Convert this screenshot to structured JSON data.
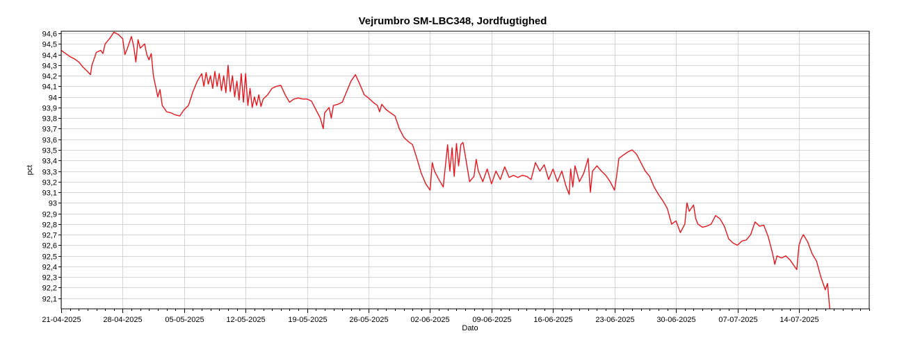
{
  "chart_data": {
    "type": "line",
    "title": "Vejrumbro SM-LBC348, Jordfugtighed",
    "xlabel": "Dato",
    "ylabel": "pct",
    "ylim": [
      92.0,
      94.62
    ],
    "xlim": [
      "2025-04-21",
      "2025-07-22"
    ],
    "grid": true,
    "y_ticks": [
      {
        "value": 92.1,
        "label": "92,1"
      },
      {
        "value": 92.2,
        "label": "92,2"
      },
      {
        "value": 92.3,
        "label": "92,3"
      },
      {
        "value": 92.4,
        "label": "92,4"
      },
      {
        "value": 92.5,
        "label": "92,5"
      },
      {
        "value": 92.6,
        "label": "92,6"
      },
      {
        "value": 92.7,
        "label": "92,7"
      },
      {
        "value": 92.8,
        "label": "92,8"
      },
      {
        "value": 92.9,
        "label": "92,9"
      },
      {
        "value": 93.0,
        "label": "93"
      },
      {
        "value": 93.1,
        "label": "93,1"
      },
      {
        "value": 93.2,
        "label": "93,2"
      },
      {
        "value": 93.3,
        "label": "93,3"
      },
      {
        "value": 93.4,
        "label": "93,4"
      },
      {
        "value": 93.5,
        "label": "93,5"
      },
      {
        "value": 93.6,
        "label": "93,6"
      },
      {
        "value": 93.7,
        "label": "93,7"
      },
      {
        "value": 93.8,
        "label": "93,8"
      },
      {
        "value": 93.9,
        "label": "93,9"
      },
      {
        "value": 94.0,
        "label": "94"
      },
      {
        "value": 94.1,
        "label": "94,1"
      },
      {
        "value": 94.2,
        "label": "94,2"
      },
      {
        "value": 94.3,
        "label": "94,3"
      },
      {
        "value": 94.4,
        "label": "94,4"
      },
      {
        "value": 94.5,
        "label": "94,5"
      },
      {
        "value": 94.6,
        "label": "94,6"
      }
    ],
    "x_ticks": [
      {
        "date": "2025-04-21",
        "label": "21-04-2025"
      },
      {
        "date": "2025-04-28",
        "label": "28-04-2025"
      },
      {
        "date": "2025-05-05",
        "label": "05-05-2025"
      },
      {
        "date": "2025-05-12",
        "label": "12-05-2025"
      },
      {
        "date": "2025-05-19",
        "label": "19-05-2025"
      },
      {
        "date": "2025-05-26",
        "label": "26-05-2025"
      },
      {
        "date": "2025-06-02",
        "label": "02-06-2025"
      },
      {
        "date": "2025-06-09",
        "label": "09-06-2025"
      },
      {
        "date": "2025-06-16",
        "label": "16-06-2025"
      },
      {
        "date": "2025-06-23",
        "label": "23-06-2025"
      },
      {
        "date": "2025-06-30",
        "label": "30-06-2025"
      },
      {
        "date": "2025-07-07",
        "label": "07-07-2025"
      },
      {
        "date": "2025-07-14",
        "label": "14-07-2025"
      }
    ],
    "series": [
      {
        "color": "#e8141c",
        "points": [
          [
            "2025-04-21 00:00",
            94.44
          ],
          [
            "2025-04-21 12:00",
            94.41
          ],
          [
            "2025-04-22 00:00",
            94.38
          ],
          [
            "2025-04-22 12:00",
            94.36
          ],
          [
            "2025-04-23 00:00",
            94.33
          ],
          [
            "2025-04-23 12:00",
            94.28
          ],
          [
            "2025-04-24 00:00",
            94.24
          ],
          [
            "2025-04-24 08:00",
            94.21
          ],
          [
            "2025-04-24 12:00",
            94.3
          ],
          [
            "2025-04-24 18:00",
            94.36
          ],
          [
            "2025-04-25 00:00",
            94.42
          ],
          [
            "2025-04-25 12:00",
            94.44
          ],
          [
            "2025-04-25 18:00",
            94.41
          ],
          [
            "2025-04-26 00:00",
            94.5
          ],
          [
            "2025-04-26 12:00",
            94.55
          ],
          [
            "2025-04-27 00:00",
            94.61
          ],
          [
            "2025-04-27 12:00",
            94.59
          ],
          [
            "2025-04-28 00:00",
            94.55
          ],
          [
            "2025-04-28 06:00",
            94.4
          ],
          [
            "2025-04-28 12:00",
            94.45
          ],
          [
            "2025-04-29 00:00",
            94.57
          ],
          [
            "2025-04-29 06:00",
            94.48
          ],
          [
            "2025-04-29 12:00",
            94.33
          ],
          [
            "2025-04-29 18:00",
            94.54
          ],
          [
            "2025-04-30 00:00",
            94.46
          ],
          [
            "2025-04-30 12:00",
            94.5
          ],
          [
            "2025-04-30 18:00",
            94.4
          ],
          [
            "2025-05-01 00:00",
            94.35
          ],
          [
            "2025-05-01 06:00",
            94.41
          ],
          [
            "2025-05-01 12:00",
            94.2
          ],
          [
            "2025-05-01 18:00",
            94.1
          ],
          [
            "2025-05-02 00:00",
            94.0
          ],
          [
            "2025-05-02 06:00",
            94.07
          ],
          [
            "2025-05-02 12:00",
            93.92
          ],
          [
            "2025-05-03 00:00",
            93.86
          ],
          [
            "2025-05-03 12:00",
            93.85
          ],
          [
            "2025-05-04 00:00",
            93.83
          ],
          [
            "2025-05-04 12:00",
            93.82
          ],
          [
            "2025-05-05 00:00",
            93.88
          ],
          [
            "2025-05-05 12:00",
            93.92
          ],
          [
            "2025-05-06 00:00",
            94.05
          ],
          [
            "2025-05-06 12:00",
            94.15
          ],
          [
            "2025-05-07 00:00",
            94.22
          ],
          [
            "2025-05-07 06:00",
            94.1
          ],
          [
            "2025-05-07 12:00",
            94.23
          ],
          [
            "2025-05-07 18:00",
            94.12
          ],
          [
            "2025-05-08 00:00",
            94.2
          ],
          [
            "2025-05-08 06:00",
            94.08
          ],
          [
            "2025-05-08 12:00",
            94.24
          ],
          [
            "2025-05-08 18:00",
            94.1
          ],
          [
            "2025-05-09 00:00",
            94.22
          ],
          [
            "2025-05-09 06:00",
            94.06
          ],
          [
            "2025-05-09 12:00",
            94.2
          ],
          [
            "2025-05-09 18:00",
            94.04
          ],
          [
            "2025-05-10 00:00",
            94.3
          ],
          [
            "2025-05-10 06:00",
            94.05
          ],
          [
            "2025-05-10 12:00",
            94.2
          ],
          [
            "2025-05-10 18:00",
            94.0
          ],
          [
            "2025-05-11 00:00",
            94.15
          ],
          [
            "2025-05-11 06:00",
            93.97
          ],
          [
            "2025-05-11 12:00",
            94.22
          ],
          [
            "2025-05-11 18:00",
            93.95
          ],
          [
            "2025-05-12 00:00",
            94.22
          ],
          [
            "2025-05-12 06:00",
            93.92
          ],
          [
            "2025-05-12 12:00",
            94.08
          ],
          [
            "2025-05-12 18:00",
            93.9
          ],
          [
            "2025-05-13 00:00",
            94.0
          ],
          [
            "2025-05-13 06:00",
            93.92
          ],
          [
            "2025-05-13 12:00",
            94.02
          ],
          [
            "2025-05-13 18:00",
            93.91
          ],
          [
            "2025-05-14 00:00",
            93.98
          ],
          [
            "2025-05-14 12:00",
            94.02
          ],
          [
            "2025-05-15 00:00",
            94.08
          ],
          [
            "2025-05-15 12:00",
            94.1
          ],
          [
            "2025-05-16 00:00",
            94.11
          ],
          [
            "2025-05-16 12:00",
            94.02
          ],
          [
            "2025-05-17 00:00",
            93.95
          ],
          [
            "2025-05-17 12:00",
            93.98
          ],
          [
            "2025-05-18 00:00",
            93.99
          ],
          [
            "2025-05-18 12:00",
            93.98
          ],
          [
            "2025-05-19 00:00",
            93.98
          ],
          [
            "2025-05-19 12:00",
            93.96
          ],
          [
            "2025-05-20 00:00",
            93.88
          ],
          [
            "2025-05-20 12:00",
            93.8
          ],
          [
            "2025-05-20 20:00",
            93.7
          ],
          [
            "2025-05-21 00:00",
            93.85
          ],
          [
            "2025-05-21 12:00",
            93.9
          ],
          [
            "2025-05-21 18:00",
            93.8
          ],
          [
            "2025-05-22 00:00",
            93.92
          ],
          [
            "2025-05-22 12:00",
            93.93
          ],
          [
            "2025-05-23 00:00",
            93.95
          ],
          [
            "2025-05-23 12:00",
            94.05
          ],
          [
            "2025-05-24 00:00",
            94.15
          ],
          [
            "2025-05-24 12:00",
            94.21
          ],
          [
            "2025-05-25 00:00",
            94.12
          ],
          [
            "2025-05-25 12:00",
            94.02
          ],
          [
            "2025-05-26 00:00",
            93.99
          ],
          [
            "2025-05-26 12:00",
            93.95
          ],
          [
            "2025-05-27 00:00",
            93.92
          ],
          [
            "2025-05-27 06:00",
            93.86
          ],
          [
            "2025-05-27 12:00",
            93.93
          ],
          [
            "2025-05-28 00:00",
            93.88
          ],
          [
            "2025-05-28 12:00",
            93.85
          ],
          [
            "2025-05-29 00:00",
            93.82
          ],
          [
            "2025-05-29 12:00",
            93.7
          ],
          [
            "2025-05-30 00:00",
            93.62
          ],
          [
            "2025-05-30 12:00",
            93.58
          ],
          [
            "2025-05-31 00:00",
            93.55
          ],
          [
            "2025-05-31 12:00",
            93.42
          ],
          [
            "2025-06-01 00:00",
            93.28
          ],
          [
            "2025-06-01 12:00",
            93.18
          ],
          [
            "2025-06-02 00:00",
            93.12
          ],
          [
            "2025-06-02 06:00",
            93.38
          ],
          [
            "2025-06-02 12:00",
            93.3
          ],
          [
            "2025-06-03 00:00",
            93.22
          ],
          [
            "2025-06-03 12:00",
            93.15
          ],
          [
            "2025-06-04 00:00",
            93.55
          ],
          [
            "2025-06-04 06:00",
            93.3
          ],
          [
            "2025-06-04 12:00",
            93.52
          ],
          [
            "2025-06-04 18:00",
            93.25
          ],
          [
            "2025-06-05 00:00",
            93.56
          ],
          [
            "2025-06-05 06:00",
            93.35
          ],
          [
            "2025-06-05 12:00",
            93.55
          ],
          [
            "2025-06-05 18:00",
            93.57
          ],
          [
            "2025-06-06 00:00",
            93.45
          ],
          [
            "2025-06-06 12:00",
            93.2
          ],
          [
            "2025-06-07 00:00",
            93.25
          ],
          [
            "2025-06-07 06:00",
            93.41
          ],
          [
            "2025-06-07 12:00",
            93.3
          ],
          [
            "2025-06-08 00:00",
            93.2
          ],
          [
            "2025-06-08 12:00",
            93.32
          ],
          [
            "2025-06-09 00:00",
            93.18
          ],
          [
            "2025-06-09 12:00",
            93.3
          ],
          [
            "2025-06-10 00:00",
            93.22
          ],
          [
            "2025-06-10 12:00",
            93.34
          ],
          [
            "2025-06-11 00:00",
            93.24
          ],
          [
            "2025-06-11 12:00",
            93.26
          ],
          [
            "2025-06-12 00:00",
            93.24
          ],
          [
            "2025-06-12 12:00",
            93.26
          ],
          [
            "2025-06-13 00:00",
            93.25
          ],
          [
            "2025-06-13 12:00",
            93.22
          ],
          [
            "2025-06-14 00:00",
            93.38
          ],
          [
            "2025-06-14 12:00",
            93.3
          ],
          [
            "2025-06-15 00:00",
            93.36
          ],
          [
            "2025-06-15 12:00",
            93.22
          ],
          [
            "2025-06-16 00:00",
            93.32
          ],
          [
            "2025-06-16 12:00",
            93.2
          ],
          [
            "2025-06-17 00:00",
            93.3
          ],
          [
            "2025-06-17 12:00",
            93.15
          ],
          [
            "2025-06-17 20:00",
            93.08
          ],
          [
            "2025-06-18 00:00",
            93.32
          ],
          [
            "2025-06-18 06:00",
            93.15
          ],
          [
            "2025-06-18 12:00",
            93.35
          ],
          [
            "2025-06-19 00:00",
            93.2
          ],
          [
            "2025-06-19 12:00",
            93.28
          ],
          [
            "2025-06-20 00:00",
            93.42
          ],
          [
            "2025-06-20 06:00",
            93.1
          ],
          [
            "2025-06-20 12:00",
            93.3
          ],
          [
            "2025-06-21 00:00",
            93.35
          ],
          [
            "2025-06-21 12:00",
            93.3
          ],
          [
            "2025-06-22 00:00",
            93.26
          ],
          [
            "2025-06-22 12:00",
            93.2
          ],
          [
            "2025-06-23 00:00",
            93.12
          ],
          [
            "2025-06-23 06:00",
            93.26
          ],
          [
            "2025-06-23 12:00",
            93.42
          ],
          [
            "2025-06-24 00:00",
            93.45
          ],
          [
            "2025-06-24 12:00",
            93.48
          ],
          [
            "2025-06-25 00:00",
            93.5
          ],
          [
            "2025-06-25 12:00",
            93.46
          ],
          [
            "2025-06-26 00:00",
            93.38
          ],
          [
            "2025-06-26 12:00",
            93.3
          ],
          [
            "2025-06-27 00:00",
            93.25
          ],
          [
            "2025-06-27 12:00",
            93.15
          ],
          [
            "2025-06-28 00:00",
            93.08
          ],
          [
            "2025-06-28 12:00",
            93.02
          ],
          [
            "2025-06-29 00:00",
            92.95
          ],
          [
            "2025-06-29 12:00",
            92.8
          ],
          [
            "2025-06-30 00:00",
            92.83
          ],
          [
            "2025-06-30 12:00",
            92.72
          ],
          [
            "2025-07-01 00:00",
            92.8
          ],
          [
            "2025-07-01 06:00",
            93.0
          ],
          [
            "2025-07-01 12:00",
            92.92
          ],
          [
            "2025-07-02 00:00",
            92.98
          ],
          [
            "2025-07-02 06:00",
            92.85
          ],
          [
            "2025-07-02 12:00",
            92.8
          ],
          [
            "2025-07-03 00:00",
            92.77
          ],
          [
            "2025-07-03 12:00",
            92.78
          ],
          [
            "2025-07-04 00:00",
            92.8
          ],
          [
            "2025-07-04 12:00",
            92.88
          ],
          [
            "2025-07-05 00:00",
            92.85
          ],
          [
            "2025-07-05 12:00",
            92.78
          ],
          [
            "2025-07-06 00:00",
            92.66
          ],
          [
            "2025-07-06 12:00",
            92.62
          ],
          [
            "2025-07-07 00:00",
            92.6
          ],
          [
            "2025-07-07 12:00",
            92.64
          ],
          [
            "2025-07-08 00:00",
            92.65
          ],
          [
            "2025-07-08 12:00",
            92.7
          ],
          [
            "2025-07-09 00:00",
            92.82
          ],
          [
            "2025-07-09 12:00",
            92.78
          ],
          [
            "2025-07-10 00:00",
            92.79
          ],
          [
            "2025-07-10 12:00",
            92.68
          ],
          [
            "2025-07-11 00:00",
            92.52
          ],
          [
            "2025-07-11 06:00",
            92.42
          ],
          [
            "2025-07-11 12:00",
            92.5
          ],
          [
            "2025-07-12 00:00",
            92.48
          ],
          [
            "2025-07-12 12:00",
            92.5
          ],
          [
            "2025-07-13 00:00",
            92.46
          ],
          [
            "2025-07-13 12:00",
            92.4
          ],
          [
            "2025-07-13 18:00",
            92.37
          ],
          [
            "2025-07-14 00:00",
            92.6
          ],
          [
            "2025-07-14 06:00",
            92.66
          ],
          [
            "2025-07-14 12:00",
            92.7
          ],
          [
            "2025-07-15 00:00",
            92.63
          ],
          [
            "2025-07-15 12:00",
            92.52
          ],
          [
            "2025-07-16 00:00",
            92.45
          ],
          [
            "2025-07-16 12:00",
            92.3
          ],
          [
            "2025-07-17 00:00",
            92.18
          ],
          [
            "2025-07-17 06:00",
            92.24
          ],
          [
            "2025-07-17 12:00",
            92.0
          ]
        ]
      }
    ]
  }
}
